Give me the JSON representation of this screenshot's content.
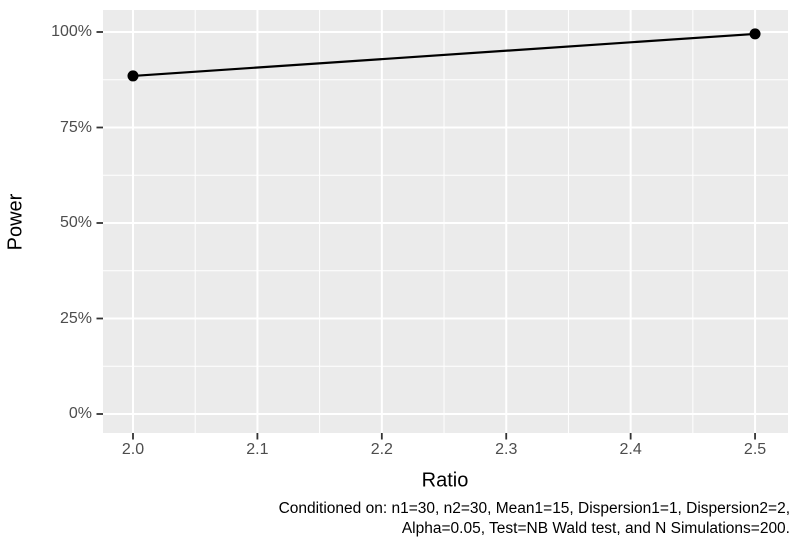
{
  "chart_data": {
    "type": "line",
    "title": "",
    "xlabel": "Ratio",
    "ylabel": "Power",
    "x": [
      2.0,
      2.5
    ],
    "series": [
      {
        "name": "Power",
        "values_pct": [
          88.5,
          99.5
        ]
      }
    ],
    "x_ticks": [
      2.0,
      2.1,
      2.2,
      2.3,
      2.4,
      2.5
    ],
    "x_tick_labels": [
      "2.0",
      "2.1",
      "2.2",
      "2.3",
      "2.4",
      "2.5"
    ],
    "y_ticks_pct": [
      0,
      25,
      50,
      75,
      100
    ],
    "y_tick_labels": [
      "0%",
      "25%",
      "50%",
      "75%",
      "100%"
    ],
    "xlim": [
      1.975,
      2.525
    ],
    "ylim_pct": [
      -5,
      105
    ],
    "grid": "major+minor",
    "legend": "none",
    "style": {
      "panel_bg": "#EBEBEB",
      "grid_color": "#FFFFFF",
      "tick_mark_color": "#333333",
      "tick_label_color": "#4D4D4D",
      "axis_title_color": "#000000",
      "series_color": "#000000"
    }
  },
  "caption": {
    "line1": "Conditioned on: n1=30, n2=30, Mean1=15, Dispersion1=1, Dispersion2=2,",
    "line2": "Alpha=0.05, Test=NB Wald test, and N Simulations=200."
  }
}
